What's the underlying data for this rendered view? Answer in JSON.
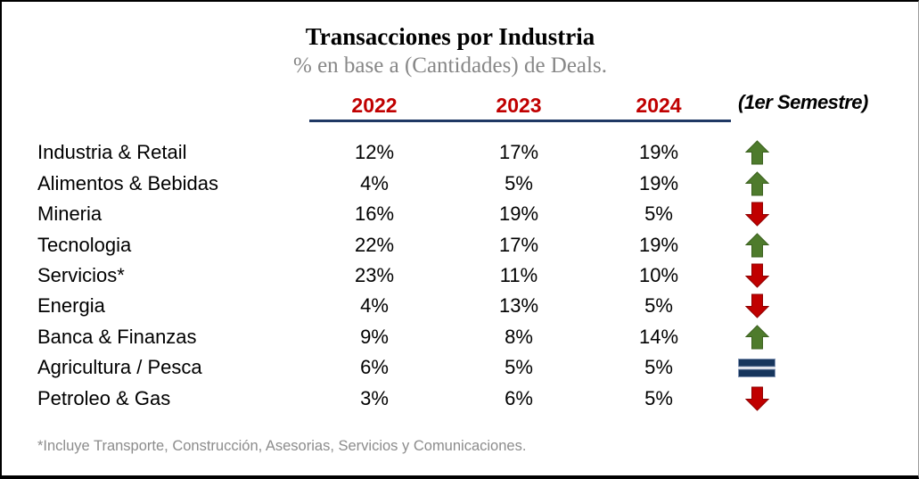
{
  "chart_data": {
    "type": "table",
    "title": "Transacciones por Industria",
    "subtitle": "% en base a (Cantidades) de Deals.",
    "columns": [
      "2022",
      "2023",
      "2024"
    ],
    "trend_note": "(1er Semestre)",
    "unit": "%",
    "rows": [
      {
        "industry": "Industria & Retail",
        "values": [
          12,
          17,
          19
        ],
        "trend": "up"
      },
      {
        "industry": "Alimentos & Bebidas",
        "values": [
          4,
          5,
          19
        ],
        "trend": "up"
      },
      {
        "industry": "Mineria",
        "values": [
          16,
          19,
          5
        ],
        "trend": "down"
      },
      {
        "industry": "Tecnologia",
        "values": [
          22,
          17,
          19
        ],
        "trend": "up"
      },
      {
        "industry": "Servicios*",
        "values": [
          23,
          11,
          10
        ],
        "trend": "down"
      },
      {
        "industry": "Energia",
        "values": [
          4,
          13,
          5
        ],
        "trend": "down"
      },
      {
        "industry": "Banca & Finanzas",
        "values": [
          9,
          8,
          14
        ],
        "trend": "up"
      },
      {
        "industry": "Agricultura / Pesca",
        "values": [
          6,
          5,
          5
        ],
        "trend": "equal"
      },
      {
        "industry": "Petroleo & Gas",
        "values": [
          3,
          6,
          5
        ],
        "trend": "down"
      }
    ],
    "grid": false,
    "legend_position": "none"
  },
  "footnote": "*Incluye Transporte, Construcción, Asesorias, Servicios y Comunicaciones.",
  "colors": {
    "year_red": "#c00000",
    "up_green": "#4e7b2c",
    "up_green_dark": "#3c611f",
    "down_red": "#c00000",
    "down_red_dark": "#8f0000",
    "equal_navy": "#17365d",
    "equal_navy_light": "#8496b5",
    "rule_navy": "#1f3864",
    "subtitle_gray": "#878787",
    "footnote_gray": "#8c8c8c"
  }
}
